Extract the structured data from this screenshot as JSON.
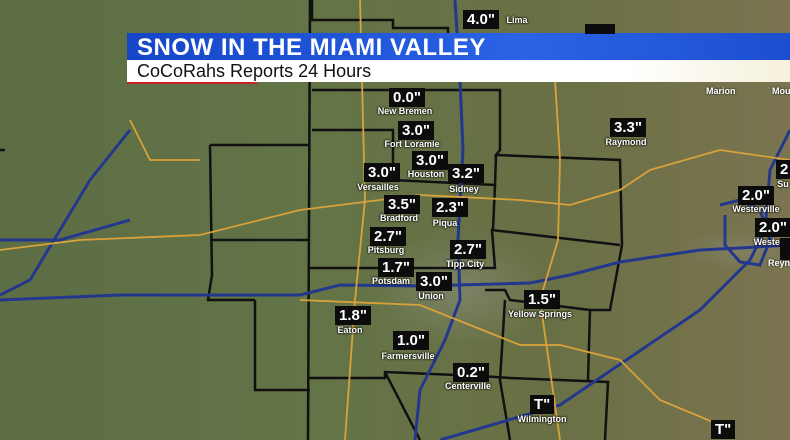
{
  "banner": {
    "title": "SNOW IN THE MIAMI VALLEY",
    "subtitle": "CoCoRahs Reports 24 Hours"
  },
  "colors": {
    "banner_blue": "#1f56d8",
    "highway_orange": "#d9a13b",
    "interstate_blue": "#23388c",
    "county_border": "#111111"
  },
  "reports": [
    {
      "value": "4.0\"",
      "place": "Lima"
    },
    {
      "value": "0.0\"",
      "place": "New Bremen"
    },
    {
      "value": "3.0\"",
      "place": "Fort Loramie"
    },
    {
      "value": "3.0\"",
      "place": "Houston"
    },
    {
      "value": "3.2\"",
      "place": "Sidney"
    },
    {
      "value": "3.0\"",
      "place": "Versailles"
    },
    {
      "value": "3.5\"",
      "place": "Bradford"
    },
    {
      "value": "2.3\"",
      "place": "Piqua"
    },
    {
      "value": "2.7\"",
      "place": "Pitsburg"
    },
    {
      "value": "1.7\"",
      "place": "Potsdam"
    },
    {
      "value": "3.0\"",
      "place": "Union"
    },
    {
      "value": "2.7\"",
      "place": "Tipp City"
    },
    {
      "value": "1.5\"",
      "place": "Yellow Springs"
    },
    {
      "value": "1.8\"",
      "place": "Eaton"
    },
    {
      "value": "1.0\"",
      "place": "Farmersville"
    },
    {
      "value": "0.2\"",
      "place": "Centerville"
    },
    {
      "value": "T\"",
      "place": "Wilmington"
    },
    {
      "value": "T\"",
      "place": ""
    },
    {
      "value": "3.3\"",
      "place": "Raymond"
    },
    {
      "value": "2.0\"",
      "place": "Westerville"
    },
    {
      "value": "2.0\"",
      "place": "Westerv"
    },
    {
      "value": "2",
      "place": "Su"
    }
  ],
  "cities": [
    "Marion",
    "Mou",
    "Reyn"
  ]
}
